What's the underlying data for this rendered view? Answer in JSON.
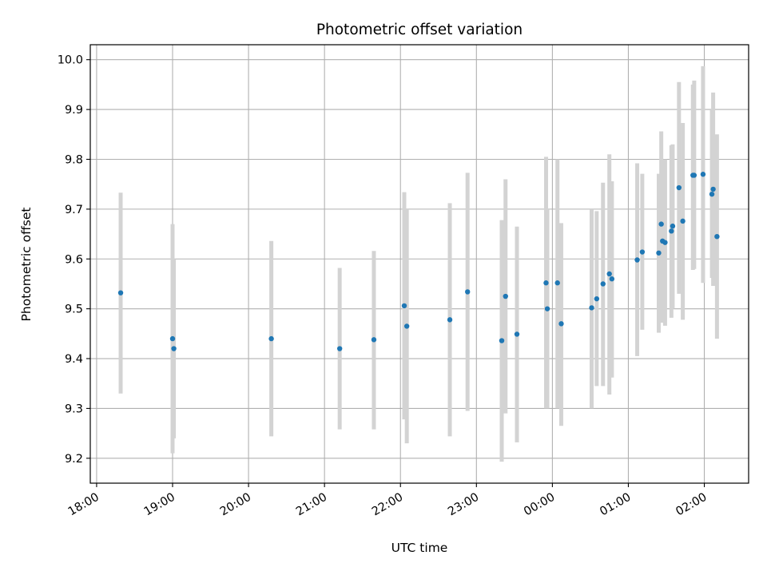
{
  "chart_data": {
    "type": "scatter",
    "title": "Photometric offset variation",
    "xlabel": "UTC time",
    "ylabel": "Photometric offset",
    "grid": true,
    "error_bar_color": "#d3d3d3",
    "point_color": "#1f77b4",
    "xlim": [
      "17:55",
      "02:35"
    ],
    "ylim": [
      9.15,
      10.03
    ],
    "x_ticks": [
      "18:00",
      "19:00",
      "20:00",
      "21:00",
      "22:00",
      "23:00",
      "00:00",
      "01:00",
      "02:00"
    ],
    "y_ticks": [
      "9.2",
      "9.3",
      "9.4",
      "9.5",
      "9.6",
      "9.7",
      "9.8",
      "9.9",
      "10.0"
    ],
    "points": [
      {
        "x": "18:19",
        "y": 9.532,
        "yerr_low": 9.33,
        "yerr_high": 9.733
      },
      {
        "x": "19:00",
        "y": 9.44,
        "yerr_low": 9.21,
        "yerr_high": 9.67
      },
      {
        "x": "19:01",
        "y": 9.42,
        "yerr_low": 9.24,
        "yerr_high": 9.6
      },
      {
        "x": "20:18",
        "y": 9.44,
        "yerr_low": 9.244,
        "yerr_high": 9.636
      },
      {
        "x": "21:12",
        "y": 9.42,
        "yerr_low": 9.258,
        "yerr_high": 9.582
      },
      {
        "x": "21:39",
        "y": 9.438,
        "yerr_low": 9.258,
        "yerr_high": 9.616
      },
      {
        "x": "22:03",
        "y": 9.506,
        "yerr_low": 9.278,
        "yerr_high": 9.734
      },
      {
        "x": "22:05",
        "y": 9.465,
        "yerr_low": 9.23,
        "yerr_high": 9.7
      },
      {
        "x": "22:39",
        "y": 9.478,
        "yerr_low": 9.244,
        "yerr_high": 9.712
      },
      {
        "x": "22:53",
        "y": 9.534,
        "yerr_low": 9.295,
        "yerr_high": 9.773
      },
      {
        "x": "23:20",
        "y": 9.436,
        "yerr_low": 9.193,
        "yerr_high": 9.678
      },
      {
        "x": "23:23",
        "y": 9.525,
        "yerr_low": 9.29,
        "yerr_high": 9.76
      },
      {
        "x": "23:32",
        "y": 9.449,
        "yerr_low": 9.232,
        "yerr_high": 9.665
      },
      {
        "x": "23:55",
        "y": 9.552,
        "yerr_low": 9.3,
        "yerr_high": 9.805
      },
      {
        "x": "23:56",
        "y": 9.5,
        "yerr_low": 9.3,
        "yerr_high": 9.7
      },
      {
        "x": "00:04",
        "y": 9.552,
        "yerr_low": 9.3,
        "yerr_high": 9.8
      },
      {
        "x": "00:07",
        "y": 9.47,
        "yerr_low": 9.265,
        "yerr_high": 9.672
      },
      {
        "x": "00:31",
        "y": 9.502,
        "yerr_low": 9.3,
        "yerr_high": 9.7
      },
      {
        "x": "00:35",
        "y": 9.52,
        "yerr_low": 9.345,
        "yerr_high": 9.696
      },
      {
        "x": "00:40",
        "y": 9.55,
        "yerr_low": 9.345,
        "yerr_high": 9.753
      },
      {
        "x": "00:45",
        "y": 9.57,
        "yerr_low": 9.328,
        "yerr_high": 9.81
      },
      {
        "x": "00:47",
        "y": 9.56,
        "yerr_low": 9.362,
        "yerr_high": 9.756
      },
      {
        "x": "01:07",
        "y": 9.598,
        "yerr_low": 9.405,
        "yerr_high": 9.792
      },
      {
        "x": "01:11",
        "y": 9.614,
        "yerr_low": 9.458,
        "yerr_high": 9.771
      },
      {
        "x": "01:24",
        "y": 9.612,
        "yerr_low": 9.452,
        "yerr_high": 9.771
      },
      {
        "x": "01:26",
        "y": 9.67,
        "yerr_low": 9.482,
        "yerr_high": 9.856
      },
      {
        "x": "01:27",
        "y": 9.636,
        "yerr_low": 9.472,
        "yerr_high": 9.8
      },
      {
        "x": "01:29",
        "y": 9.633,
        "yerr_low": 9.466,
        "yerr_high": 9.8
      },
      {
        "x": "01:34",
        "y": 9.656,
        "yerr_low": 9.482,
        "yerr_high": 9.828
      },
      {
        "x": "01:35",
        "y": 9.666,
        "yerr_low": 9.5,
        "yerr_high": 9.83
      },
      {
        "x": "01:40",
        "y": 9.743,
        "yerr_low": 9.53,
        "yerr_high": 9.955
      },
      {
        "x": "01:43",
        "y": 9.676,
        "yerr_low": 9.478,
        "yerr_high": 9.873
      },
      {
        "x": "01:51",
        "y": 9.768,
        "yerr_low": 9.578,
        "yerr_high": 9.95
      },
      {
        "x": "01:52",
        "y": 9.768,
        "yerr_low": 9.58,
        "yerr_high": 9.958
      },
      {
        "x": "01:59",
        "y": 9.77,
        "yerr_low": 9.552,
        "yerr_high": 9.987
      },
      {
        "x": "02:06",
        "y": 9.73,
        "yerr_low": 9.562,
        "yerr_high": 9.9
      },
      {
        "x": "02:07",
        "y": 9.74,
        "yerr_low": 9.546,
        "yerr_high": 9.934
      },
      {
        "x": "02:10",
        "y": 9.645,
        "yerr_low": 9.44,
        "yerr_high": 9.85
      }
    ]
  }
}
